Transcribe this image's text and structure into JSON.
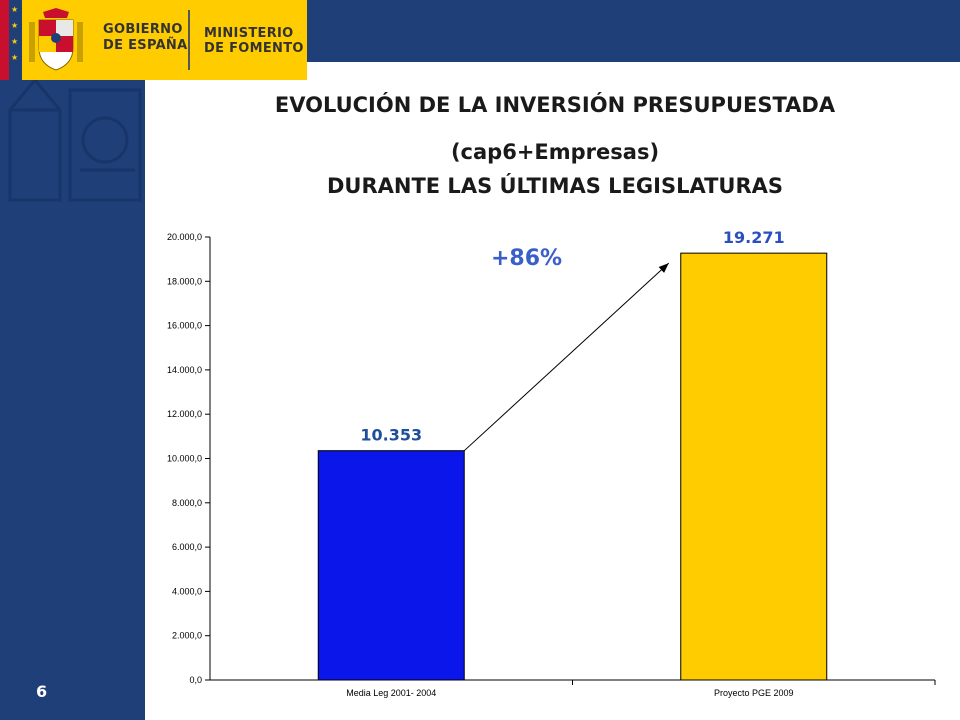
{
  "header": {
    "gov_line1": "GOBIERNO",
    "gov_line2": "DE ESPAÑA",
    "ministry_line1": "MINISTERIO",
    "ministry_line2": "DE FOMENTO"
  },
  "slide": {
    "page_number": "6"
  },
  "colors": {
    "navy": "#1f3f79",
    "gold": "#ffcc00",
    "bar1": "#0a16ea",
    "bar2": "#ffcc00",
    "label_blue": "#1f4e9a"
  },
  "chart_data": {
    "type": "bar",
    "title": "EVOLUCIÓN DE LA INVERSIÓN PRESUPUESTADA",
    "subtitle_line1": "(cap6+Empresas)",
    "subtitle_line2": "DURANTE LAS ÚLTIMAS LEGISLATURAS",
    "categories": [
      "Media Leg 2001- 2004",
      "Proyecto PGE 2009"
    ],
    "values": [
      10353,
      19271
    ],
    "data_labels": [
      "10.353",
      "19.271"
    ],
    "ylim": [
      0,
      20000
    ],
    "y_ticks": [
      "0,0",
      "2.000,0",
      "4.000,0",
      "6.000,0",
      "8.000,0",
      "10.000,0",
      "12.000,0",
      "14.000,0",
      "16.000,0",
      "18.000,0",
      "20.000,0"
    ],
    "y_tick_values": [
      0,
      2000,
      4000,
      6000,
      8000,
      10000,
      12000,
      14000,
      16000,
      18000,
      20000
    ],
    "annotation": "+86%",
    "grid": false,
    "legend": "none"
  }
}
